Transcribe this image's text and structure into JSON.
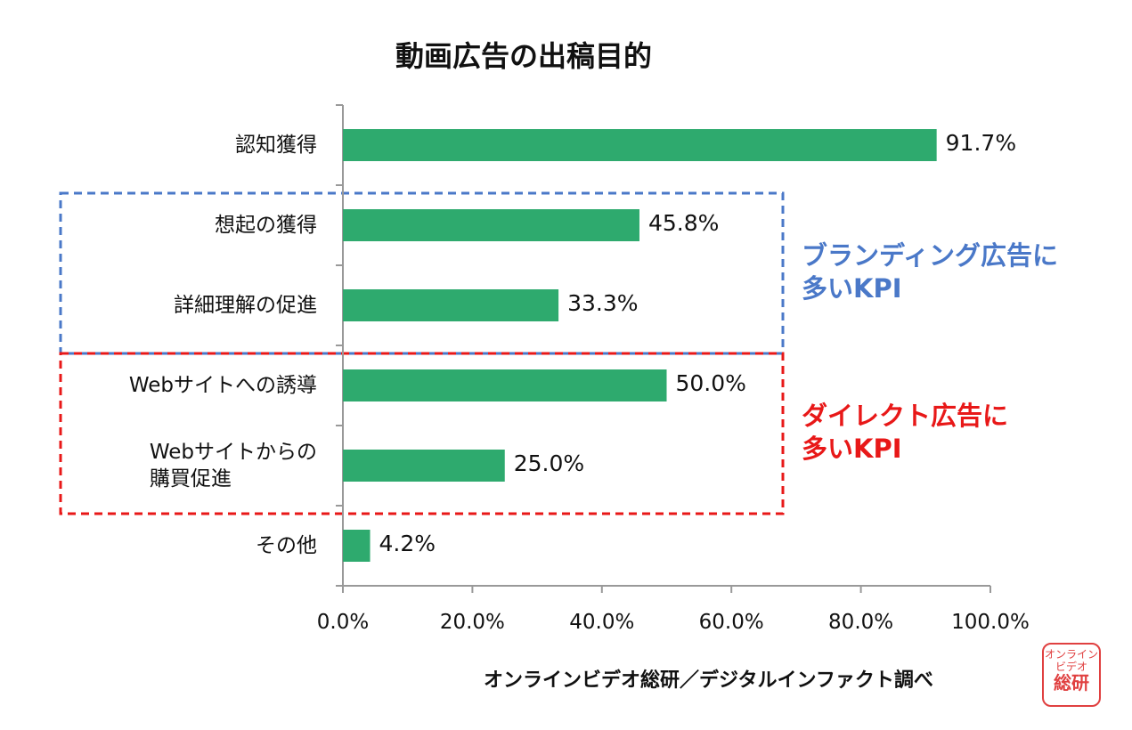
{
  "chart_data": {
    "type": "bar",
    "orientation": "horizontal",
    "title": "動画広告の出稿目的",
    "categories": [
      "認知獲得",
      "想起の獲得",
      "詳細理解の促進",
      "Webサイトへの誘導",
      "Webサイトからの購買促進",
      "その他"
    ],
    "category_lines": [
      [
        "認知獲得"
      ],
      [
        "想起の獲得"
      ],
      [
        "詳細理解の促進"
      ],
      [
        "Webサイトへの誘導"
      ],
      [
        "Webサイトからの",
        "購買促進"
      ],
      [
        "その他"
      ]
    ],
    "values": [
      91.7,
      45.8,
      33.3,
      50.0,
      25.0,
      4.2
    ],
    "value_labels": [
      "91.7%",
      "45.8%",
      "33.3%",
      "50.0%",
      "25.0%",
      "4.2%"
    ],
    "xlim": [
      0,
      100
    ],
    "x_ticks": [
      "0.0%",
      "20.0%",
      "40.0%",
      "60.0%",
      "80.0%",
      "100.0%"
    ],
    "grid": false,
    "bar_color": "#2eaa6e",
    "annotations": [
      {
        "label_lines": [
          "ブランディング広告に",
          "多いKPI"
        ],
        "color": "#4a78c8",
        "categories": [
          "想起の獲得",
          "詳細理解の促進"
        ]
      },
      {
        "label_lines": [
          "ダイレクト広告に",
          "多いKPI"
        ],
        "color": "#e81818",
        "categories": [
          "Webサイトへの誘導",
          "Webサイトからの購買促進"
        ]
      }
    ]
  },
  "footer": {
    "source": "オンラインビデオ総研／デジタルインファクト調べ",
    "logo_text": [
      "オンライン",
      "ビデオ",
      "総研"
    ]
  }
}
